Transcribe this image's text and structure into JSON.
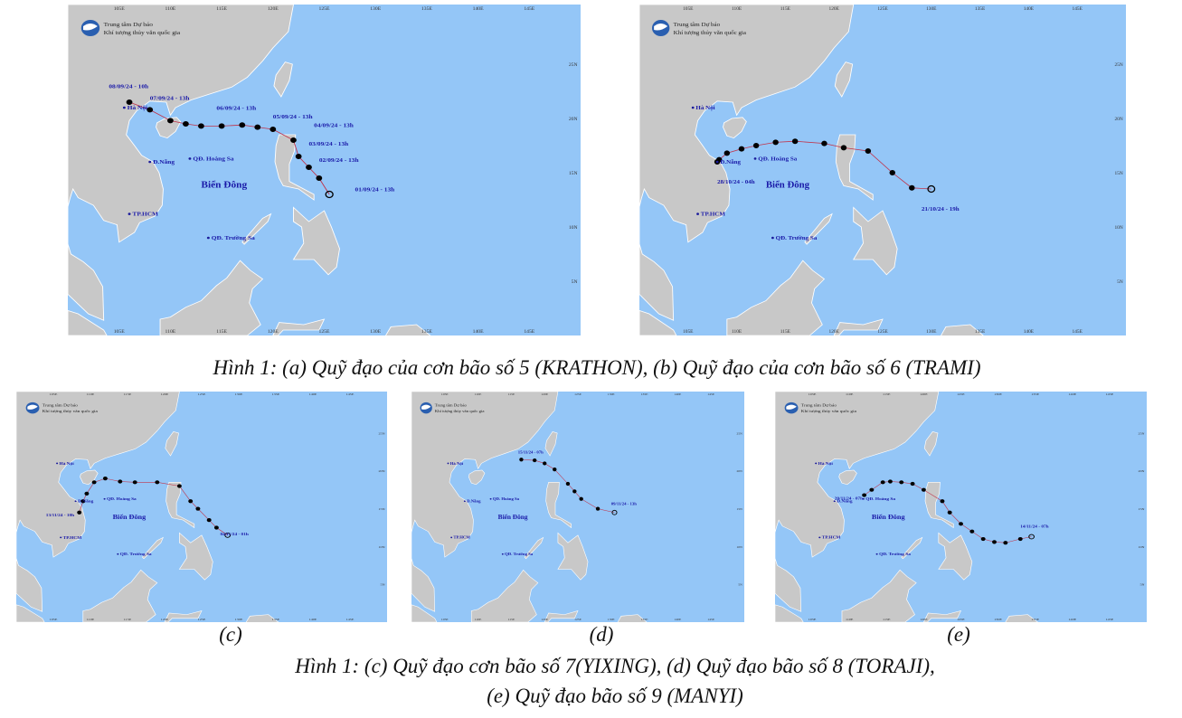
{
  "header": [
    "Trung tâm Dự báo",
    "Khí tượng thủy văn quốc gia"
  ],
  "places": [
    "Hà Nội",
    "Đ.Nẵng",
    "QĐ. Hoàng Sa",
    "TP.HCM",
    "QĐ. Trường Sa",
    "Biển Đông"
  ],
  "grid": {
    "lon": [
      "105E",
      "110E",
      "115E",
      "120E",
      "125E",
      "130E",
      "135E",
      "140E",
      "145E"
    ],
    "lat": [
      "25N",
      "20N",
      "15N",
      "10N",
      "5N"
    ]
  },
  "panels": [
    {
      "dates": [
        "08/09/24 - 10h",
        "07/09/24 - 13h",
        "06/09/24 - 13h",
        "05/09/24 - 13h",
        "04/09/24 - 13h",
        "03/09/24 - 13h",
        "02/09/24 - 13h",
        "01/09/24 - 13h"
      ]
    },
    {
      "dates": [
        "28/10/24 - 04h",
        "21/10/24 - 19h"
      ]
    },
    {
      "dates": [
        "13/11/24 - 10h",
        "04/11/24 - 01h"
      ]
    },
    {
      "dates": [
        "15/11/24 - 07h",
        "09/11/24 - 13h"
      ]
    },
    {
      "dates": [
        "20/11/24 - 07h",
        "14/11/24 - 07h"
      ]
    }
  ],
  "captions": {
    "top": "Hình 1: (a) Quỹ đạo của cơn bão số 5 (KRATHON), (b) Quỹ đạo của cơn bão số 6 (TRAMI)",
    "c": "(c)",
    "d": "(d)",
    "e": "(e)",
    "bottom": [
      "Hình 1: (c) Quỹ đạo cơn bão số 7(YIXING), (d) Quỹ đạo bão số 8 (TORAJI),",
      "(e) Quỹ đạo bão số 9 (MANYI)"
    ]
  }
}
